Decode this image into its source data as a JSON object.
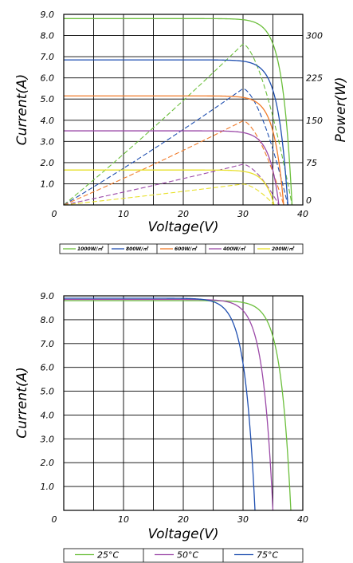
{
  "chart_data": [
    {
      "type": "line",
      "title": "",
      "xlabel": "Voltage(V)",
      "ylabel": "Current(A)",
      "y2label": "Power(W)",
      "xlim": [
        0,
        40
      ],
      "ylim": [
        0,
        9.0
      ],
      "y2lim": [
        0,
        337.5
      ],
      "grid": true,
      "legend_position": "bottom",
      "xticks": [
        "0",
        "10",
        "20",
        "30",
        "40"
      ],
      "yticks": [
        "1.0",
        "2.0",
        "3.0",
        "4.0",
        "5.0",
        "6.0",
        "7.0",
        "8.0",
        "9.0"
      ],
      "y2ticks": [
        "0",
        "75",
        "150",
        "225",
        "300"
      ],
      "series": [
        {
          "name": "1000W/㎡",
          "color": "#6cbf3c",
          "isc": 8.8,
          "voc": 38.2,
          "vmp": 30.0,
          "pmax": 285
        },
        {
          "name": "800W/㎡",
          "color": "#1f4fb0",
          "isc": 6.85,
          "voc": 37.5,
          "vmp": 30.0,
          "pmax": 206
        },
        {
          "name": "600W/㎡",
          "color": "#f07b2a",
          "isc": 5.15,
          "voc": 36.8,
          "vmp": 30.0,
          "pmax": 149
        },
        {
          "name": "400W/㎡",
          "color": "#9c4aa8",
          "isc": 3.5,
          "voc": 36.0,
          "vmp": 30.0,
          "pmax": 72
        },
        {
          "name": "200W/㎡",
          "color": "#e8e02a",
          "isc": 1.65,
          "voc": 35.2,
          "vmp": 30.0,
          "pmax": 37
        }
      ]
    },
    {
      "type": "line",
      "title": "",
      "xlabel": "Voltage(V)",
      "ylabel": "Current(A)",
      "xlim": [
        0,
        40
      ],
      "ylim": [
        0,
        9.0
      ],
      "grid": true,
      "legend_position": "bottom",
      "xticks": [
        "0",
        "10",
        "20",
        "30",
        "40"
      ],
      "yticks": [
        "1.0",
        "2.0",
        "3.0",
        "4.0",
        "5.0",
        "6.0",
        "7.0",
        "8.0",
        "9.0"
      ],
      "series": [
        {
          "name": "25°C",
          "color": "#6cbf3c",
          "isc": 8.8,
          "voc": 38.0
        },
        {
          "name": "50°C",
          "color": "#9c4aa8",
          "isc": 8.85,
          "voc": 35.0
        },
        {
          "name": "75°C",
          "color": "#1f4fb0",
          "isc": 8.9,
          "voc": 32.0
        }
      ]
    }
  ]
}
